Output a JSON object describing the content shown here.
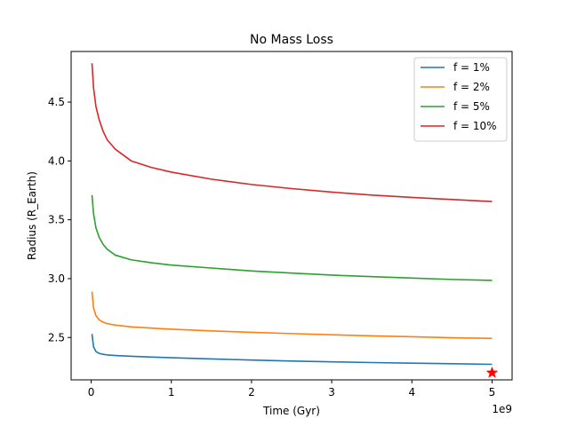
{
  "chart_data": {
    "type": "line",
    "title": "No Mass Loss",
    "xlabel": "Time (Gyr)",
    "ylabel": "Radius (R_Earth)",
    "x_offset_label": "1e9",
    "xlim": [
      -0.25,
      5.25
    ],
    "ylim": [
      2.14,
      4.93
    ],
    "x_ticks": [
      0,
      1,
      2,
      3,
      4,
      5
    ],
    "x_tick_labels": [
      "0",
      "1",
      "2",
      "3",
      "4",
      "5"
    ],
    "y_ticks": [
      2.5,
      3.0,
      3.5,
      4.0,
      4.5
    ],
    "y_tick_labels": [
      "2.5",
      "3.0",
      "3.5",
      "4.0",
      "4.5"
    ],
    "grid": false,
    "legend_position": "top-right",
    "series": [
      {
        "name": "f = 1%",
        "color": "#1f77b4",
        "x": [
          0.01,
          0.03,
          0.06,
          0.1,
          0.15,
          0.2,
          0.3,
          0.5,
          0.75,
          1.0,
          1.5,
          2.0,
          2.5,
          3.0,
          3.5,
          4.0,
          4.5,
          5.0
        ],
        "y": [
          2.53,
          2.42,
          2.38,
          2.365,
          2.357,
          2.352,
          2.347,
          2.34,
          2.334,
          2.328,
          2.318,
          2.308,
          2.3,
          2.293,
          2.287,
          2.282,
          2.277,
          2.272
        ]
      },
      {
        "name": "f = 2%",
        "color": "#ff7f0e",
        "x": [
          0.01,
          0.03,
          0.06,
          0.1,
          0.15,
          0.2,
          0.3,
          0.5,
          0.75,
          1.0,
          1.5,
          2.0,
          2.5,
          3.0,
          3.5,
          4.0,
          4.5,
          5.0
        ],
        "y": [
          2.89,
          2.75,
          2.685,
          2.65,
          2.63,
          2.618,
          2.605,
          2.59,
          2.58,
          2.57,
          2.556,
          2.544,
          2.533,
          2.523,
          2.514,
          2.506,
          2.498,
          2.492
        ]
      },
      {
        "name": "f = 5%",
        "color": "#2ca02c",
        "x": [
          0.01,
          0.03,
          0.06,
          0.1,
          0.15,
          0.2,
          0.3,
          0.5,
          0.75,
          1.0,
          1.5,
          2.0,
          2.5,
          3.0,
          3.5,
          4.0,
          4.5,
          5.0
        ],
        "y": [
          3.71,
          3.55,
          3.43,
          3.35,
          3.29,
          3.25,
          3.2,
          3.16,
          3.135,
          3.115,
          3.09,
          3.065,
          3.047,
          3.03,
          3.017,
          3.005,
          2.993,
          2.985
        ]
      },
      {
        "name": "f = 10%",
        "color": "#d62728",
        "x": [
          0.01,
          0.03,
          0.06,
          0.1,
          0.15,
          0.2,
          0.3,
          0.5,
          0.75,
          1.0,
          1.5,
          2.0,
          2.5,
          3.0,
          3.5,
          4.0,
          4.5,
          5.0
        ],
        "y": [
          4.83,
          4.62,
          4.46,
          4.35,
          4.25,
          4.18,
          4.1,
          4.0,
          3.945,
          3.905,
          3.845,
          3.8,
          3.765,
          3.735,
          3.71,
          3.69,
          3.672,
          3.655
        ]
      }
    ],
    "markers": [
      {
        "shape": "star",
        "color": "#ff0000",
        "x": 5.0,
        "y": 2.2
      }
    ]
  }
}
